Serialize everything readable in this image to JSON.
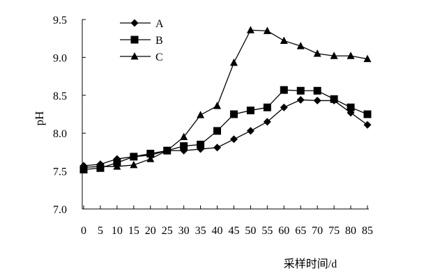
{
  "chart_data": {
    "type": "line",
    "title": "",
    "xlabel": "采样时间/d",
    "ylabel": "pH",
    "x": [
      0,
      5,
      10,
      15,
      20,
      25,
      30,
      35,
      40,
      45,
      50,
      55,
      60,
      65,
      70,
      75,
      80,
      85
    ],
    "xticks": [
      "0",
      "5",
      "10",
      "15",
      "20",
      "25",
      "30",
      "35",
      "40",
      "45",
      "50",
      "55",
      "60",
      "65",
      "70",
      "75",
      "80",
      "85"
    ],
    "ylim": [
      7.0,
      9.5
    ],
    "yticks": [
      "7.0",
      "7.5",
      "8.0",
      "8.5",
      "9.0",
      "9.5"
    ],
    "grid": false,
    "legend_position": "top-left",
    "series": [
      {
        "name": "A",
        "marker": "diamond",
        "values": [
          7.57,
          7.59,
          7.66,
          7.69,
          7.71,
          7.77,
          7.77,
          7.79,
          7.81,
          7.92,
          8.03,
          8.15,
          8.34,
          8.44,
          8.43,
          8.43,
          8.27,
          8.11
        ]
      },
      {
        "name": "B",
        "marker": "square",
        "values": [
          7.52,
          7.54,
          7.61,
          7.69,
          7.73,
          7.77,
          7.83,
          7.85,
          8.03,
          8.25,
          8.3,
          8.34,
          8.57,
          8.56,
          8.56,
          8.45,
          8.34,
          8.25
        ]
      },
      {
        "name": "C",
        "marker": "triangle",
        "values": [
          7.55,
          7.56,
          7.56,
          7.58,
          7.66,
          7.77,
          7.95,
          8.24,
          8.36,
          8.93,
          9.36,
          9.35,
          9.22,
          9.15,
          9.05,
          9.02,
          9.02,
          8.98
        ]
      }
    ]
  }
}
